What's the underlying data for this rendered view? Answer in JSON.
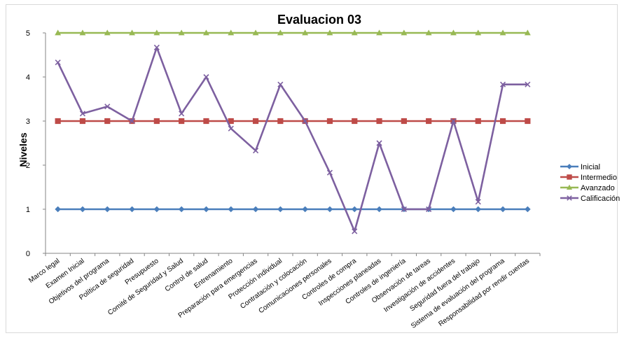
{
  "chart_data": {
    "type": "line",
    "title": "Evaluacion 03",
    "xlabel": "",
    "ylabel": "Niveles",
    "ylim": [
      0,
      5
    ],
    "yticks": [
      "0",
      "1",
      "2",
      "3",
      "4",
      "5"
    ],
    "grid": false,
    "legend_position": "right",
    "categories": [
      "Marco legal",
      "Examen Inicial",
      "Objetivos del programa",
      "Política de seguridad",
      "Presupuesto",
      "Comité de Seguridad y Salud",
      "Control de salud",
      "Entrenamiento",
      "Preparación para emergencias",
      "Protección individual",
      "Contratación y colocación",
      "Comunicaciones personales",
      "Controles de compra",
      "Inspecciones planeadas",
      "Controles de ingeniería",
      "Observación de tareas",
      "Investigación de accidentes",
      "Seguridad fuera del trabajo",
      "Sistema de evaluación del programa",
      "Responsabilidad por rendir cuentas"
    ],
    "series": [
      {
        "name": "Inicial",
        "color": "#4a7ebb",
        "marker": "diamond",
        "values": [
          1,
          1,
          1,
          1,
          1,
          1,
          1,
          1,
          1,
          1,
          1,
          1,
          1,
          1,
          1,
          1,
          1,
          1,
          1,
          1
        ]
      },
      {
        "name": "Intermedio",
        "color": "#be4b48",
        "marker": "square",
        "values": [
          3,
          3,
          3,
          3,
          3,
          3,
          3,
          3,
          3,
          3,
          3,
          3,
          3,
          3,
          3,
          3,
          3,
          3,
          3,
          3
        ]
      },
      {
        "name": "Avanzado",
        "color": "#98b954",
        "marker": "triangle",
        "values": [
          5,
          5,
          5,
          5,
          5,
          5,
          5,
          5,
          5,
          5,
          5,
          5,
          5,
          5,
          5,
          5,
          5,
          5,
          5,
          5
        ]
      },
      {
        "name": "Calificación",
        "color": "#7d60a0",
        "marker": "x",
        "values": [
          4.33,
          3.17,
          3.33,
          3.0,
          4.67,
          3.17,
          4.0,
          2.83,
          2.33,
          3.83,
          3.0,
          1.83,
          0.5,
          2.5,
          1.0,
          1.0,
          3.0,
          1.17,
          3.83,
          3.83
        ]
      }
    ]
  }
}
